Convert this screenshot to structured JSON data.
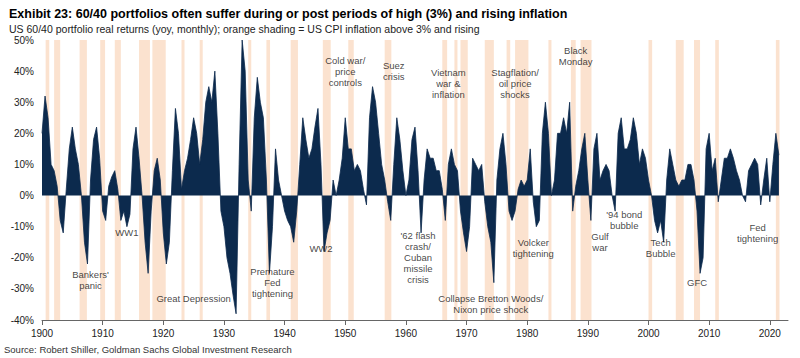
{
  "chart_data": {
    "type": "area",
    "title": "Exhibit 23: 60/40 portfolios often suffer during or post periods of high (3%) and rising inflation",
    "subtitle": "US 60/40 portfolio real returns (yoy, monthly); orange shading = US CPI inflation above 3% and rising",
    "source": "Source: Robert Shiller, Goldman Sachs Global Investment Research",
    "color": "#0c2a4d",
    "grid": false,
    "xlim": [
      1900,
      2023
    ],
    "xticks": [
      1900,
      1910,
      1920,
      1930,
      1940,
      1950,
      1960,
      1970,
      1980,
      1990,
      2000,
      2010,
      2020
    ],
    "ylim": [
      -40,
      50
    ],
    "yticks": [
      {
        "value": -40,
        "label": "-40%"
      },
      {
        "value": -30,
        "label": "-30%"
      },
      {
        "value": -20,
        "label": "-20%"
      },
      {
        "value": -10,
        "label": "-10%"
      },
      {
        "value": 0,
        "label": "0%"
      },
      {
        "value": 10,
        "label": "10%"
      },
      {
        "value": 20,
        "label": "20%"
      },
      {
        "value": 30,
        "label": "30%"
      },
      {
        "value": 40,
        "label": "40%"
      },
      {
        "value": 50,
        "label": "50%"
      }
    ],
    "x": [
      1900,
      1900.5,
      1901,
      1901.5,
      1902,
      1902.5,
      1903,
      1903.5,
      1904,
      1904.5,
      1905,
      1905.5,
      1906,
      1906.5,
      1907,
      1907.5,
      1908,
      1908.5,
      1909,
      1909.5,
      1910,
      1910.5,
      1911,
      1911.5,
      1912,
      1912.5,
      1913,
      1913.5,
      1914,
      1914.5,
      1915,
      1915.5,
      1916,
      1916.5,
      1917,
      1917.5,
      1918,
      1918.5,
      1919,
      1919.5,
      1920,
      1920.5,
      1921,
      1921.5,
      1922,
      1922.5,
      1923,
      1923.5,
      1924,
      1924.5,
      1925,
      1925.5,
      1926,
      1926.5,
      1927,
      1927.5,
      1928,
      1928.5,
      1929,
      1929.5,
      1930,
      1930.5,
      1931,
      1931.5,
      1932,
      1932.5,
      1933,
      1933.5,
      1934,
      1934.5,
      1935,
      1935.5,
      1936,
      1936.5,
      1937,
      1937.5,
      1938,
      1938.5,
      1939,
      1939.5,
      1940,
      1940.5,
      1941,
      1941.5,
      1942,
      1942.5,
      1943,
      1943.5,
      1944,
      1944.5,
      1945,
      1945.5,
      1946,
      1946.5,
      1947,
      1947.5,
      1948,
      1948.5,
      1949,
      1949.5,
      1950,
      1950.5,
      1951,
      1951.5,
      1952,
      1952.5,
      1953,
      1953.5,
      1954,
      1954.5,
      1955,
      1955.5,
      1956,
      1956.5,
      1957,
      1957.5,
      1958,
      1958.5,
      1959,
      1959.5,
      1960,
      1960.5,
      1961,
      1961.5,
      1962,
      1962.5,
      1963,
      1963.5,
      1964,
      1964.5,
      1965,
      1965.5,
      1966,
      1966.5,
      1967,
      1967.5,
      1968,
      1968.5,
      1969,
      1969.5,
      1970,
      1970.5,
      1971,
      1971.5,
      1972,
      1972.5,
      1973,
      1973.5,
      1974,
      1974.5,
      1975,
      1975.5,
      1976,
      1976.5,
      1977,
      1977.5,
      1978,
      1978.5,
      1979,
      1979.5,
      1980,
      1980.5,
      1981,
      1981.5,
      1982,
      1982.5,
      1983,
      1983.5,
      1984,
      1984.5,
      1985,
      1985.5,
      1986,
      1986.5,
      1987,
      1987.5,
      1988,
      1988.5,
      1989,
      1989.5,
      1990,
      1990.5,
      1991,
      1991.5,
      1992,
      1992.5,
      1993,
      1993.5,
      1994,
      1994.5,
      1995,
      1995.5,
      1996,
      1996.5,
      1997,
      1997.5,
      1998,
      1998.5,
      1999,
      1999.5,
      2000,
      2000.5,
      2001,
      2001.5,
      2002,
      2002.5,
      2003,
      2003.5,
      2004,
      2004.5,
      2005,
      2005.5,
      2006,
      2006.5,
      2007,
      2007.5,
      2008,
      2008.5,
      2009,
      2009.5,
      2010,
      2010.5,
      2011,
      2011.5,
      2012,
      2012.5,
      2013,
      2013.5,
      2014,
      2014.5,
      2015,
      2015.5,
      2016,
      2016.5,
      2017,
      2017.5,
      2018,
      2018.5,
      2019,
      2019.5,
      2020,
      2020.5,
      2021,
      2021.5
    ],
    "values": [
      20,
      32,
      25,
      10,
      8,
      3,
      -8,
      -12,
      2,
      15,
      22,
      15,
      10,
      0,
      -15,
      -22,
      5,
      18,
      22,
      12,
      -5,
      -8,
      3,
      6,
      8,
      2,
      -8,
      -5,
      -10,
      -6,
      15,
      22,
      12,
      0,
      -15,
      -25,
      -5,
      8,
      12,
      5,
      -12,
      -22,
      -15,
      8,
      28,
      20,
      2,
      8,
      12,
      18,
      25,
      20,
      10,
      18,
      30,
      35,
      30,
      40,
      20,
      -5,
      -10,
      -20,
      -25,
      -32,
      -38,
      10,
      50,
      40,
      5,
      -5,
      25,
      38,
      30,
      25,
      5,
      -25,
      -10,
      15,
      5,
      0,
      -5,
      -8,
      -10,
      -15,
      -5,
      10,
      25,
      18,
      12,
      15,
      22,
      28,
      10,
      -18,
      -12,
      -8,
      5,
      0,
      5,
      12,
      25,
      15,
      15,
      8,
      10,
      8,
      2,
      -3,
      25,
      35,
      30,
      20,
      10,
      5,
      -2,
      -8,
      10,
      25,
      18,
      8,
      0,
      5,
      18,
      22,
      8,
      -12,
      5,
      15,
      12,
      12,
      8,
      8,
      2,
      -8,
      10,
      15,
      10,
      8,
      -5,
      -12,
      -18,
      -10,
      12,
      10,
      8,
      10,
      -2,
      -10,
      -15,
      -28,
      5,
      15,
      20,
      10,
      -5,
      -8,
      -5,
      2,
      5,
      3,
      5,
      15,
      -2,
      -10,
      -8,
      20,
      30,
      20,
      0,
      5,
      20,
      20,
      25,
      20,
      30,
      -5,
      3,
      8,
      15,
      20,
      5,
      -8,
      15,
      20,
      5,
      8,
      10,
      8,
      0,
      -5,
      20,
      25,
      15,
      15,
      18,
      25,
      20,
      10,
      15,
      12,
      5,
      0,
      -8,
      -12,
      -8,
      -15,
      5,
      15,
      10,
      5,
      3,
      5,
      5,
      10,
      10,
      5,
      -5,
      -25,
      -20,
      15,
      20,
      8,
      12,
      -2,
      5,
      12,
      12,
      15,
      12,
      8,
      5,
      0,
      -2,
      8,
      10,
      12,
      10,
      -3,
      5,
      12,
      -2,
      10,
      20,
      13
    ],
    "shaded_ranges": [
      [
        1900.6,
        1901.2
      ],
      [
        1902.0,
        1903.0
      ],
      [
        1906.2,
        1907.4
      ],
      [
        1909.6,
        1910.4
      ],
      [
        1912.0,
        1913.0
      ],
      [
        1916.0,
        1917.8
      ],
      [
        1918.2,
        1920.4
      ],
      [
        1923.0,
        1923.5
      ],
      [
        1926.0,
        1926.5
      ],
      [
        1934.0,
        1934.5
      ],
      [
        1937.0,
        1937.6
      ],
      [
        1941.0,
        1942.2
      ],
      [
        1946.3,
        1947.6
      ],
      [
        1950.5,
        1951.4
      ],
      [
        1956.5,
        1957.6
      ],
      [
        1966.0,
        1966.8
      ],
      [
        1968.0,
        1968.5
      ],
      [
        1969.0,
        1970.2
      ],
      [
        1973.0,
        1974.5
      ],
      [
        1976.6,
        1977.2
      ],
      [
        1978.0,
        1980.2
      ],
      [
        1983.5,
        1984.0
      ],
      [
        1987.2,
        1988.0
      ],
      [
        1988.8,
        1990.6
      ],
      [
        2000.0,
        2000.6
      ],
      [
        2004.5,
        2005.8
      ],
      [
        2007.5,
        2008.5
      ],
      [
        2011.0,
        2011.6
      ],
      [
        2021.0,
        2021.6
      ]
    ],
    "annotations": [
      {
        "text": "Bankers'\npanic",
        "x": 1908,
        "y": -27
      },
      {
        "text": "WW1",
        "x": 1914,
        "y": -12
      },
      {
        "text": "Great Depression",
        "x": 1925,
        "y": -33
      },
      {
        "text": "Premature\nFed\ntightening",
        "x": 1938,
        "y": -28
      },
      {
        "text": "WW2",
        "x": 1946,
        "y": -17
      },
      {
        "text": "Cold war/\nprice\ncontrols",
        "x": 1950,
        "y": 40
      },
      {
        "text": "Suez\ncrisis",
        "x": 1958,
        "y": 40
      },
      {
        "text": "'62 flash\ncrash/\nCuban\nmissile\ncrisis",
        "x": 1962,
        "y": -20
      },
      {
        "text": "Vietnam\nwar &\ninflation",
        "x": 1967,
        "y": 36
      },
      {
        "text": "Stagflation/\noil price\nshocks",
        "x": 1978,
        "y": 36
      },
      {
        "text": "Collapse Bretton Woods/\nNixon price shock",
        "x": 1974,
        "y": -35
      },
      {
        "text": "Volcker\ntightening",
        "x": 1981,
        "y": -17
      },
      {
        "text": "Black\nMonday",
        "x": 1988,
        "y": 45
      },
      {
        "text": "Gulf\nwar",
        "x": 1992,
        "y": -15
      },
      {
        "text": "'94 bond\nbubble",
        "x": 1996,
        "y": -8
      },
      {
        "text": "Tech\nBubble",
        "x": 2002,
        "y": -17
      },
      {
        "text": "GFC",
        "x": 2008,
        "y": -28
      },
      {
        "text": "Fed\ntightening",
        "x": 2018,
        "y": -12
      }
    ]
  }
}
